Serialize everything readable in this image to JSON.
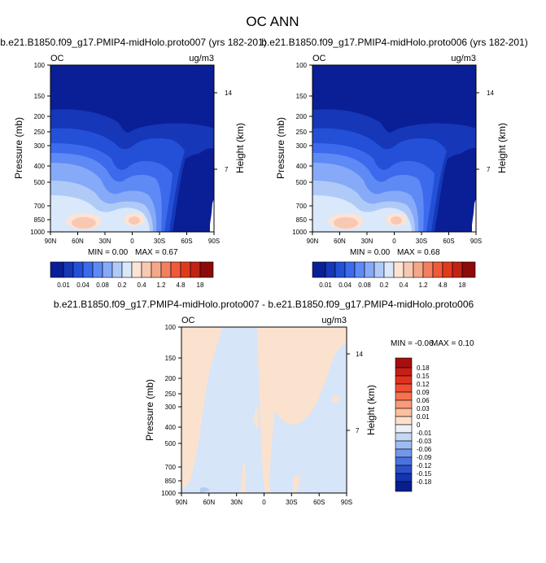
{
  "figure": {
    "title": "OC ANN",
    "top_left_title": "b.e21.B1850.f09_g17.PMIP4-midHolo.proto007 (yrs 182-201)",
    "top_right_title": "b.e21.B1850.f09_g17.PMIP4-midHolo.proto006 (yrs 182-201)",
    "bottom_title": "b.e21.B1850.f09_g17.PMIP4-midHolo.proto007 - b.e21.B1850.f09_g17.PMIP4-midHolo.proto006"
  },
  "chart_data": [
    {
      "type": "heatmap",
      "variable": "OC",
      "units": "ug/m3",
      "ylabel": "Pressure (mb)",
      "y2label": "Height (km)",
      "x_ticks": [
        "90N",
        "60N",
        "30N",
        "0",
        "30S",
        "60S",
        "90S"
      ],
      "y_ticks": [
        "100",
        "150",
        "200",
        "250",
        "300",
        "400",
        "500",
        "700",
        "850",
        "1000"
      ],
      "y2_ticks": [
        "14",
        "7"
      ],
      "min_label": "MIN =   0.00",
      "max_label": "MAX =   0.67",
      "min": 0.0,
      "max": 0.67,
      "colorbar_labels": [
        "0.01",
        "0.04",
        "0.08",
        "0.2",
        "0.4",
        "1.2",
        "4.8",
        "18"
      ],
      "colors": [
        "#0a1e96",
        "#1537b8",
        "#2450d8",
        "#3d6aec",
        "#5e8af5",
        "#86aaf7",
        "#b0caf8",
        "#d9e8fb",
        "#fbe3d6",
        "#f8c8b2",
        "#f5a888",
        "#f28060",
        "#ee5a3a",
        "#e03a1e",
        "#c02314",
        "#8b0a0a"
      ]
    },
    {
      "type": "heatmap",
      "variable": "OC",
      "units": "ug/m3",
      "ylabel": "Pressure (mb)",
      "y2label": "Height (km)",
      "x_ticks": [
        "90N",
        "60N",
        "30N",
        "0",
        "30S",
        "60S",
        "90S"
      ],
      "y_ticks": [
        "100",
        "150",
        "200",
        "250",
        "300",
        "400",
        "500",
        "700",
        "850",
        "1000"
      ],
      "y2_ticks": [
        "14",
        "7"
      ],
      "min_label": "MIN =   0.00",
      "max_label": "MAX =   0.68",
      "min": 0.0,
      "max": 0.68,
      "colorbar_labels": [
        "0.01",
        "0.04",
        "0.08",
        "0.2",
        "0.4",
        "1.2",
        "4.8",
        "18"
      ],
      "colors": [
        "#0a1e96",
        "#1537b8",
        "#2450d8",
        "#3d6aec",
        "#5e8af5",
        "#86aaf7",
        "#b0caf8",
        "#d9e8fb",
        "#fbe3d6",
        "#f8c8b2",
        "#f5a888",
        "#f28060",
        "#ee5a3a",
        "#e03a1e",
        "#c02314",
        "#8b0a0a"
      ]
    },
    {
      "type": "heatmap",
      "variable": "OC",
      "units": "ug/m3",
      "ylabel": "Pressure (mb)",
      "y2label": "Height (km)",
      "x_ticks": [
        "90N",
        "60N",
        "30N",
        "0",
        "30S",
        "60S",
        "90S"
      ],
      "y_ticks": [
        "100",
        "150",
        "200",
        "250",
        "300",
        "400",
        "500",
        "700",
        "850",
        "1000"
      ],
      "y2_ticks": [
        "14",
        "7"
      ],
      "min_label": "MIN =  -0.06",
      "max_label": "MAX =   0.10",
      "min": -0.06,
      "max": 0.1,
      "colorbar_labels": [
        "0.18",
        "0.15",
        "0.12",
        "0.09",
        "0.06",
        "0.03",
        "0.01",
        "0",
        "-0.01",
        "-0.03",
        "-0.06",
        "-0.09",
        "-0.12",
        "-0.15",
        "-0.18"
      ],
      "colors": [
        "#a50f0f",
        "#c81e14",
        "#e0321e",
        "#f04e32",
        "#f77350",
        "#fa9a78",
        "#fcbfa0",
        "#fde0cc",
        "#eef0f8",
        "#c4d8f5",
        "#9dbdf2",
        "#7198ec",
        "#4a72e0",
        "#2c50cc",
        "#1434b0",
        "#081e8c"
      ]
    }
  ]
}
